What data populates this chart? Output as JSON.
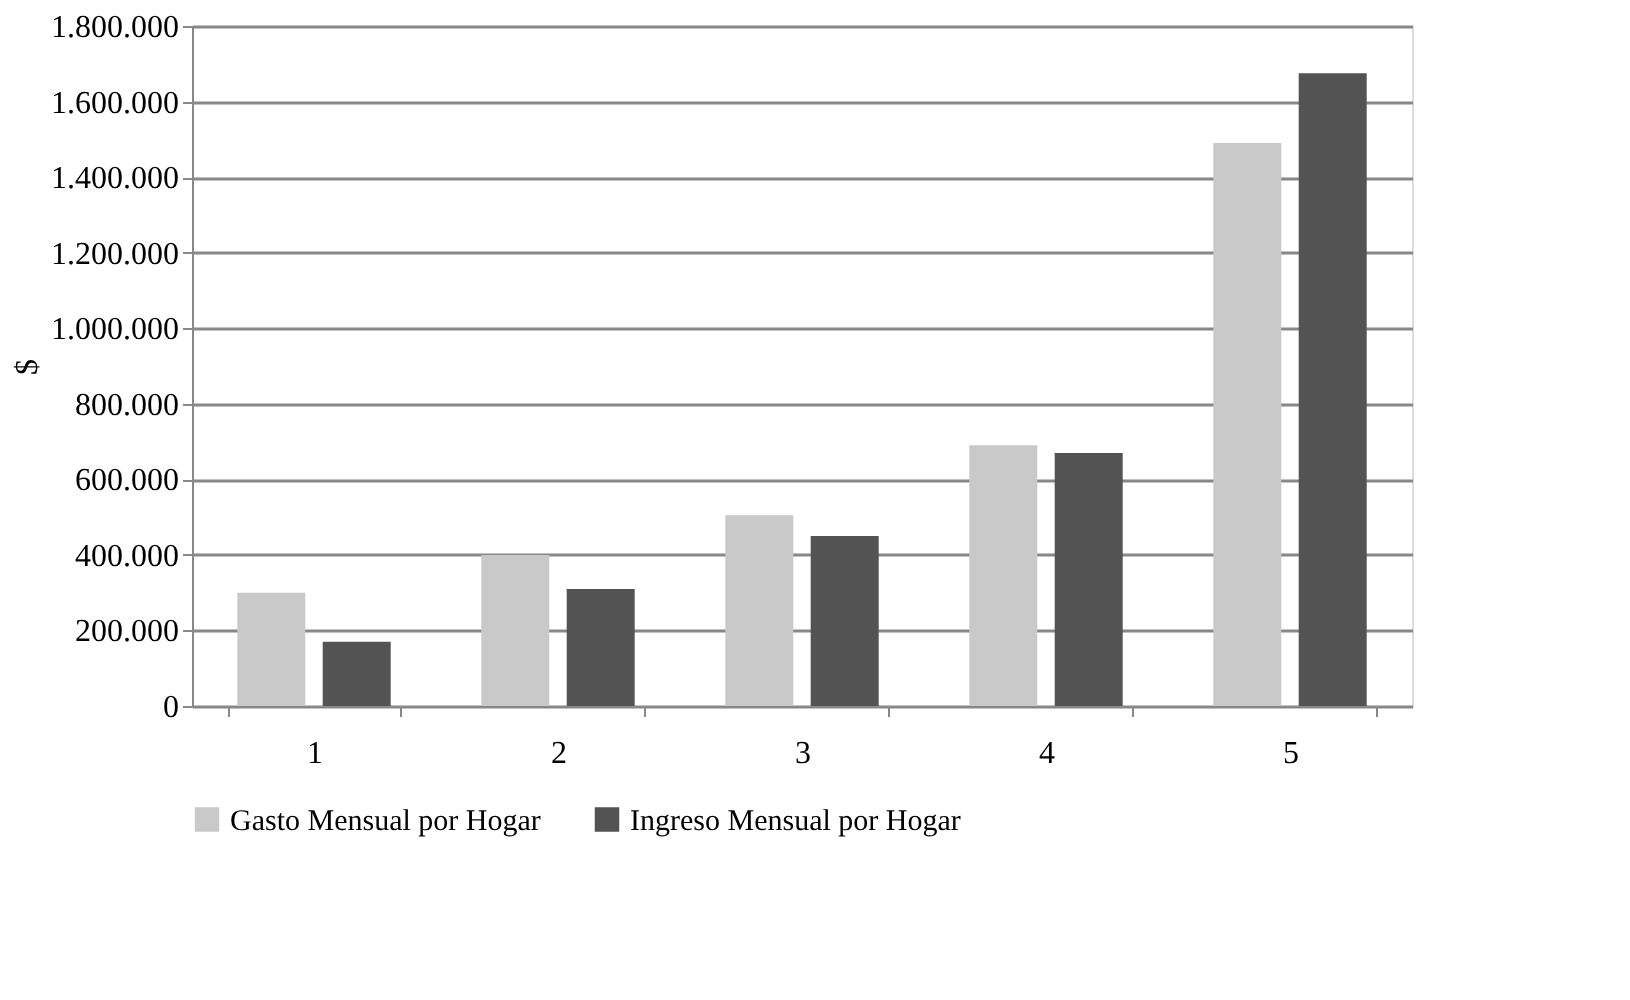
{
  "chart_data": {
    "type": "bar",
    "ylabel": "$",
    "categories": [
      "1",
      "2",
      "3",
      "4",
      "5"
    ],
    "series": [
      {
        "name": "Gasto Mensual por Hogar",
        "color": "#c8c9c8",
        "values": [
          300000,
          400000,
          505000,
          690000,
          1490000
        ]
      },
      {
        "name": "Ingreso Mensual por Hogar",
        "color": "#535353",
        "values": [
          170000,
          310000,
          450000,
          670000,
          1675000
        ]
      }
    ],
    "ylim": [
      0,
      1800000
    ],
    "yticks": [
      0,
      {
        "value": 200000,
        "label": "200.000"
      },
      {
        "value": 400000,
        "label": "400.000"
      },
      {
        "value": 600000,
        "label": "600.000"
      },
      {
        "value": 800000,
        "label": "800.000"
      },
      {
        "value": 1000000,
        "label": "1.000.000"
      },
      {
        "value": 1200000,
        "label": "1.200.000"
      },
      {
        "value": 1400000,
        "label": "1.400.000"
      },
      {
        "value": 1600000,
        "label": "1.600.000"
      },
      {
        "value": 1800000,
        "label": "1.800.000"
      }
    ],
    "grid": "y",
    "legend": "bottom"
  }
}
